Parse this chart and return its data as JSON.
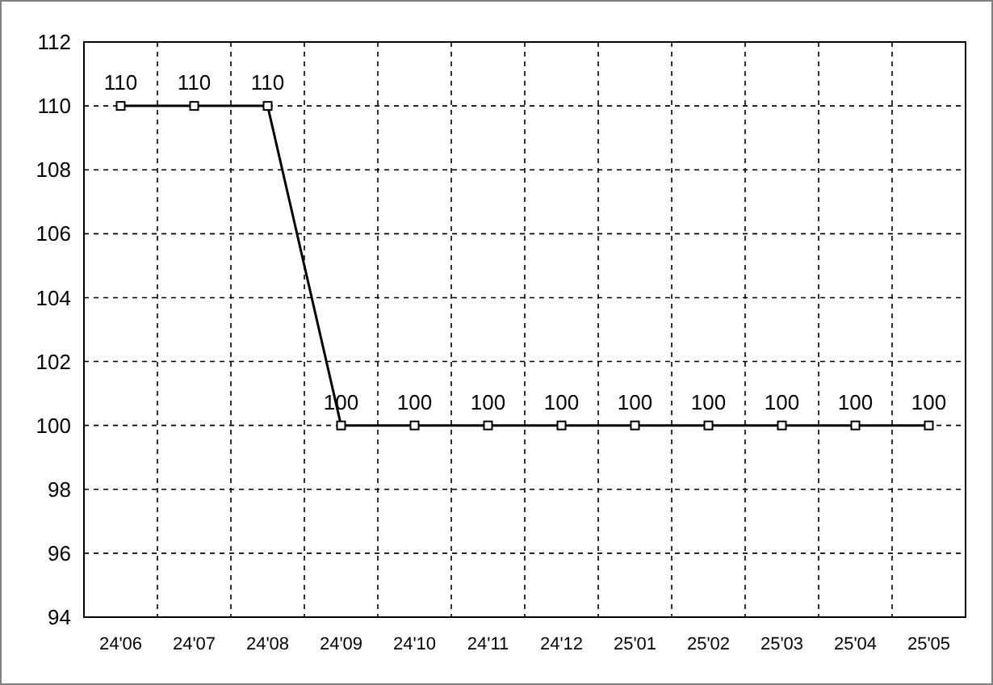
{
  "chart_data": {
    "type": "line",
    "categories": [
      "24'06",
      "24'07",
      "24'08",
      "24'09",
      "24'10",
      "24'11",
      "24'12",
      "25'01",
      "25'02",
      "25'03",
      "25'04",
      "25'05"
    ],
    "series": [
      {
        "color": "#000000",
        "values": [
          110,
          110,
          110,
          100,
          100,
          100,
          100,
          100,
          100,
          100,
          100,
          100
        ]
      }
    ],
    "ylim": [
      94,
      112
    ],
    "yticks": [
      94,
      96,
      98,
      100,
      102,
      104,
      106,
      108,
      110,
      112
    ],
    "grid": true,
    "marker": "square",
    "data_labels": true
  }
}
